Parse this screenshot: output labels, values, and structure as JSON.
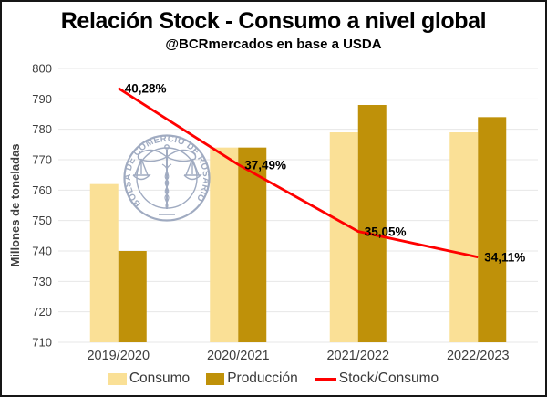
{
  "header": {
    "title": "Relación Stock - Consumo a nivel global",
    "subtitle": "@BCRmercados en base a USDA"
  },
  "watermark": {
    "ring_text": "BOLSA DE COMERCIO DE ROSARIO"
  },
  "chart_data": {
    "type": "combo-bar-line",
    "categories": [
      "2019/2020",
      "2020/2021",
      "2021/2022",
      "2022/2023"
    ],
    "series": [
      {
        "name": "Consumo",
        "type": "bar",
        "axis": "primary",
        "color": "#FAE096",
        "values": [
          762,
          774,
          779,
          779
        ]
      },
      {
        "name": "Producción",
        "type": "bar",
        "axis": "primary",
        "color": "#BF9109",
        "values": [
          740,
          774,
          788,
          784
        ]
      },
      {
        "name": "Stock/Consumo",
        "type": "line",
        "axis": "secondary",
        "color": "#FF0000",
        "values": [
          40.28,
          37.49,
          35.05,
          34.11
        ],
        "point_labels": [
          "40,28%",
          "37,49%",
          "35,05%",
          "34,11%"
        ]
      }
    ],
    "ylabel": "Millones de toneladas",
    "y_ticks": [
      800,
      790,
      780,
      770,
      760,
      750,
      740,
      730,
      720,
      710
    ],
    "ylim": [
      710,
      800
    ],
    "secondary_ylim": [
      31,
      41
    ],
    "grid": true,
    "legend_position": "bottom"
  },
  "colors": {
    "grid": "#E7E7E7",
    "tick_text": "#3D3D3D",
    "point_label_text": "#000000",
    "watermark": "#98A4BC"
  }
}
